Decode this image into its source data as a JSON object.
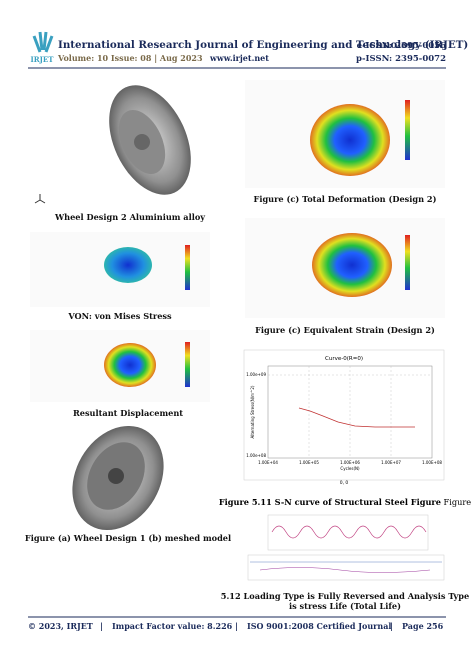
{
  "header": {
    "logo": "IRJET",
    "title": "International Research Journal of Engineering and Technology (IRJET)",
    "volume": "Volume: 10 Issue: 08 | Aug 2023",
    "website": "www.irjet.net",
    "e_issn": "e-ISSN: 2395-0056",
    "p_issn": "p-ISSN: 2395-0072"
  },
  "left": [
    "Wheel Design 2 Aluminium alloy",
    "VON: von Mises Stress",
    "Resultant Displacement",
    "Figure (a) Wheel Design 1 (b) meshed model"
  ],
  "right": [
    "Figure (c) Total Deformation (Design 2)",
    "Figure (c) Equivalent Strain (Design 2)",
    {
      "title": "Curve-0(R=0)",
      "ylabel": "Alternating Stress(N/m^2)",
      "xlabel": "Cycles(N)",
      "yticks": [
        "1.00e+09",
        "1.00e+08"
      ],
      "xticks": [
        "1.00E+04",
        "1.00E+05",
        "1.00E+06",
        "1.00E+07",
        "1.00E+08"
      ],
      "note": "0, 0"
    },
    {
      "bold": "Figure 5.11 S-N curve of Structural Steel Figure",
      "plain": "Figure"
    },
    [
      "5.12 Loading Type is Fully Reversed and Analysis Type",
      "is stress Life (Total Life)"
    ]
  ],
  "footer": [
    "© 2023, IRJET",
    "|",
    "Impact Factor value: 8.226",
    "|",
    "ISO 9001:2008 Certified Journal",
    "|",
    "Page 256"
  ]
}
